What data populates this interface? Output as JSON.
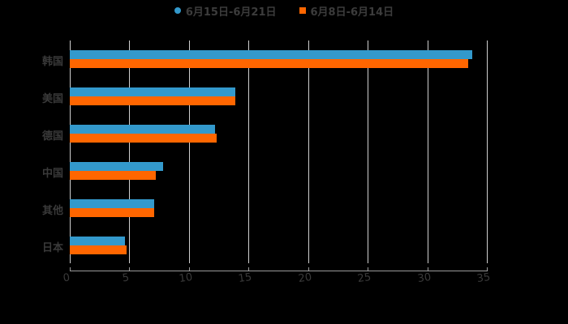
{
  "chart_data": {
    "type": "bar",
    "orientation": "horizontal",
    "title": "",
    "xlabel": "",
    "ylabel": "",
    "categories": [
      "韩国",
      "美国",
      "德国",
      "中国",
      "其他",
      "日本"
    ],
    "series": [
      {
        "name": "6月15日-6月21日",
        "color": "#3399cc",
        "values": [
          33.8,
          13.9,
          12.2,
          7.8,
          7.1,
          4.6
        ]
      },
      {
        "name": "6月8日-6月14日",
        "color": "#ff6600",
        "values": [
          33.4,
          13.9,
          12.3,
          7.2,
          7.1,
          4.8
        ]
      }
    ],
    "xlim": [
      0,
      35
    ],
    "xticks": [
      "0",
      "5",
      "10",
      "15",
      "20",
      "25",
      "30",
      "35"
    ],
    "grid": true,
    "legend_position": "top"
  }
}
